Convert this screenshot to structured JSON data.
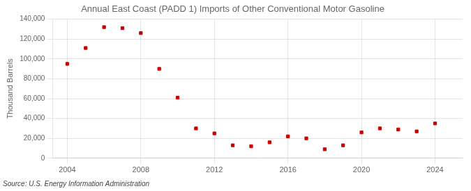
{
  "chart_data": {
    "type": "scatter",
    "title": "Annual East Coast (PADD 1) Imports of Other Conventional Motor Gasoline",
    "ylabel": "Thousand Barrels",
    "annotations": [
      "Source: U.S. Energy Information Administration"
    ],
    "x": [
      2004,
      2005,
      2006,
      2007,
      2008,
      2009,
      2010,
      2011,
      2012,
      2013,
      2014,
      2015,
      2016,
      2017,
      2018,
      2019,
      2020,
      2021,
      2022,
      2023,
      2024
    ],
    "values": [
      95000,
      111000,
      132000,
      131000,
      126000,
      90000,
      61000,
      30000,
      25000,
      13000,
      12000,
      16000,
      22000,
      20000,
      9000,
      13000,
      26000,
      30000,
      29000,
      27000,
      35000
    ],
    "color": "#cc0000",
    "marker": "square",
    "xlim": [
      2003.2,
      2025.5
    ],
    "xticks": [
      2004,
      2008,
      2012,
      2016,
      2020,
      2024
    ],
    "ylim": [
      0,
      140000
    ],
    "yticks": [
      0,
      {
        "value": 20000,
        "label": "20,000"
      },
      {
        "value": 40000,
        "label": "40,000"
      },
      {
        "value": 60000,
        "label": "60,000"
      },
      {
        "value": 80000,
        "label": "80,000"
      },
      {
        "value": 100000,
        "label": "100,000"
      },
      {
        "value": 120000,
        "label": "120,000"
      },
      {
        "value": 140000,
        "label": "140,000"
      }
    ],
    "grid": true
  }
}
